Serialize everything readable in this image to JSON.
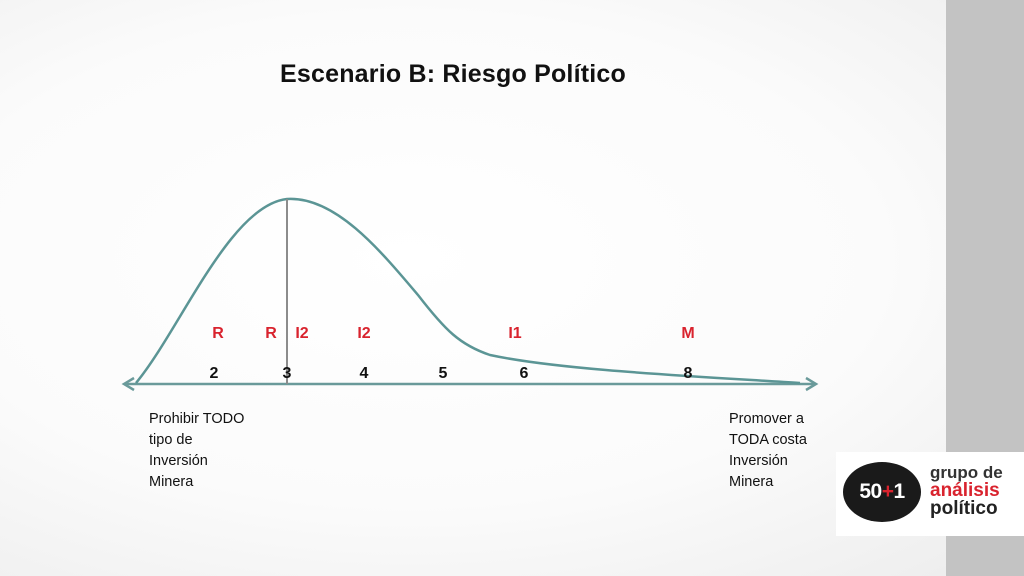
{
  "title": "Escenario B: Riesgo Político",
  "colors": {
    "curve": "#5b9595",
    "axis": "#6a9a9a",
    "marker_line": "#8c8c8c",
    "letter_labels": "#d9232e",
    "number_labels": "#111111"
  },
  "letter_labels": [
    "R",
    "R",
    "I2",
    "I2",
    "I1",
    "M"
  ],
  "number_labels": [
    "2",
    "3",
    "4",
    "5",
    "6",
    "8"
  ],
  "left_label": [
    "Prohibir TODO",
    "tipo de",
    "Inversión",
    "Minera"
  ],
  "right_label": [
    "Promover a",
    "TODA costa",
    "Inversión",
    "Minera"
  ],
  "logo": {
    "number_a": "50",
    "number_plus": "+",
    "number_b": "1",
    "line1": "grupo de",
    "line2": "análisis",
    "line3": "político"
  }
}
